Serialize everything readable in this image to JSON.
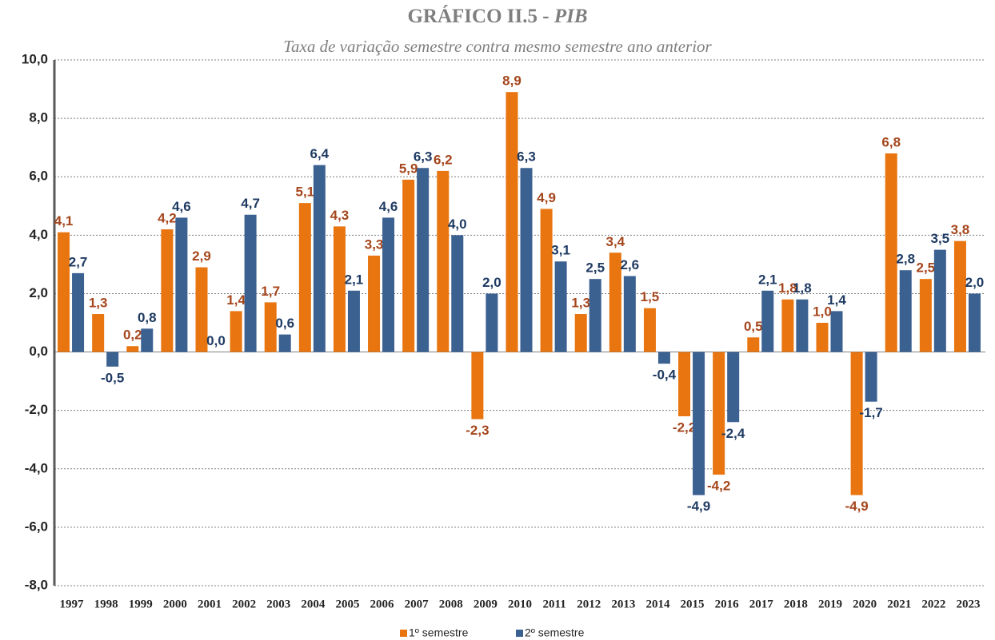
{
  "chart_data": {
    "type": "bar",
    "title_parts": [
      "GRÁFICO II.5 - ",
      "PIB"
    ],
    "subtitle": "Taxa de variação semestre contra mesmo semestre ano anterior",
    "categories": [
      "1997",
      "1998",
      "1999",
      "2000",
      "2001",
      "2002",
      "2003",
      "2004",
      "2005",
      "2006",
      "2007",
      "2008",
      "2009",
      "2010",
      "2011",
      "2012",
      "2013",
      "2014",
      "2015",
      "2016",
      "2017",
      "2018",
      "2019",
      "2020",
      "2021",
      "2022",
      "2023"
    ],
    "series": [
      {
        "name": "1º semestre",
        "color": "#e8750f",
        "label_color": "#a5461c",
        "values": [
          4.1,
          1.3,
          0.2,
          4.2,
          2.9,
          1.4,
          1.7,
          5.1,
          4.3,
          3.3,
          5.9,
          6.2,
          -2.3,
          8.9,
          4.9,
          1.3,
          3.4,
          1.5,
          -2.2,
          -4.2,
          0.5,
          1.8,
          1.0,
          -4.9,
          6.8,
          2.5,
          3.8
        ],
        "value_labels": [
          "4,1",
          "1,3",
          "0,2",
          "4,2",
          "2,9",
          "1,4",
          "1,7",
          "5,1",
          "4,3",
          "3,3",
          "5,9",
          "6,2",
          "-2,3",
          "8,9",
          "4,9",
          "1,3",
          "3,4",
          "1,5",
          "-2,2",
          "-4,2",
          "0,5",
          "1,8",
          "1,0",
          "-4,9",
          "6,8",
          "2,5",
          "3,8"
        ]
      },
      {
        "name": "2º semestre",
        "color": "#3b6191",
        "label_color": "#1f3b63",
        "values": [
          2.7,
          -0.5,
          0.8,
          4.6,
          0.0,
          4.7,
          0.6,
          6.4,
          2.1,
          4.6,
          6.3,
          4.0,
          2.0,
          6.3,
          3.1,
          2.5,
          2.6,
          -0.4,
          -4.9,
          -2.4,
          2.1,
          1.8,
          1.4,
          -1.7,
          2.8,
          3.5,
          2.0
        ],
        "value_labels": [
          "2,7",
          "-0,5",
          "0,8",
          "4,6",
          "0,0",
          "4,7",
          "0,6",
          "6,4",
          "2,1",
          "4,6",
          "6,3",
          "4,0",
          "2,0",
          "6,3",
          "3,1",
          "2,5",
          "2,6",
          "-0,4",
          "-4,9",
          "-2,4",
          "2,1",
          "1,8",
          "1,4",
          "-1,7",
          "2,8",
          "3,5",
          "2,0"
        ]
      }
    ],
    "ylim": [
      -8,
      10
    ],
    "yticks": [
      {
        "value": -8,
        "label": "-8,0"
      },
      {
        "value": -6,
        "label": "-6,0"
      },
      {
        "value": -4,
        "label": "-4,0"
      },
      {
        "value": -2,
        "label": "-2,0"
      },
      {
        "value": 0,
        "label": "0,0"
      },
      {
        "value": 2,
        "label": "2,0"
      },
      {
        "value": 4,
        "label": "4,0"
      },
      {
        "value": 6,
        "label": "6,0"
      },
      {
        "value": 8,
        "label": "8,0"
      },
      {
        "value": 10,
        "label": "10,0"
      }
    ],
    "grid": true,
    "legend": "bottom"
  }
}
